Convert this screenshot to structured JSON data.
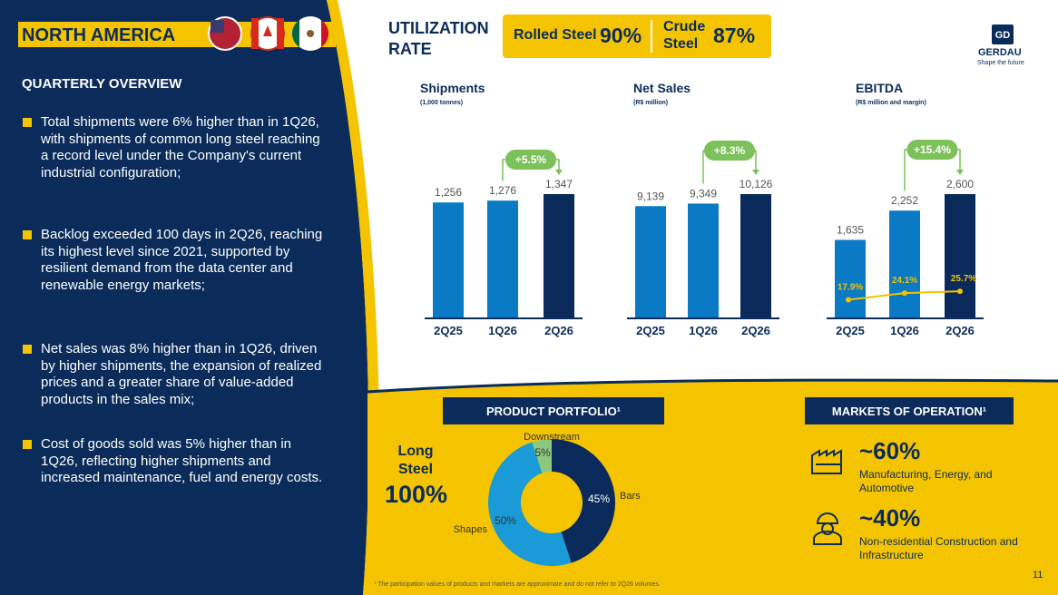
{
  "header": {
    "region": "NORTH AMERICA"
  },
  "overview": {
    "title": "QUARTERLY OVERVIEW",
    "bullets": [
      "Total shipments were 6% higher than in 1Q26, with shipments of common long steel reaching a record level under the Company's current industrial configuration;",
      "Backlog exceeded 100 days in 2Q26, reaching its highest level since 2021, supported by resilient demand from the data center and renewable energy markets;",
      "Net sales was 8% higher than in 1Q26, driven by higher shipments, the expansion of realized prices and a greater share of value-added products in the sales mix;",
      "Cost of goods sold was 5% higher than in 1Q26, reflecting higher shipments and increased maintenance, fuel and energy costs."
    ]
  },
  "utilization": {
    "title": "UTILIZATION RATE",
    "items": [
      {
        "label": "Rolled Steel",
        "value": "90%"
      },
      {
        "label": "Crude Steel",
        "value": "87%"
      }
    ]
  },
  "logo": {
    "name": "GERDAU",
    "tagline": "Shape the future"
  },
  "chart_data": [
    {
      "type": "bar",
      "title": "Shipments",
      "subtitle": "(1,000 tonnes)",
      "categories": [
        "2Q25",
        "1Q26",
        "2Q26"
      ],
      "values": [
        1256,
        1276,
        1347
      ],
      "value_labels": [
        "1,256",
        "1,276",
        "1,347"
      ],
      "colors": [
        "#0b7ac4",
        "#0b7ac4",
        "#0a2a5c"
      ],
      "annotation": "+5.5%"
    },
    {
      "type": "bar",
      "title": "Net Sales",
      "subtitle": "(R$ million)",
      "categories": [
        "2Q25",
        "1Q26",
        "2Q26"
      ],
      "values": [
        9139,
        9349,
        10126
      ],
      "value_labels": [
        "9,139",
        "9,349",
        "10,126"
      ],
      "colors": [
        "#0b7ac4",
        "#0b7ac4",
        "#0a2a5c"
      ],
      "annotation": "+8.3%"
    },
    {
      "type": "bar",
      "title": "EBITDA",
      "subtitle": "(R$ million and margin)",
      "categories": [
        "2Q25",
        "1Q26",
        "2Q26"
      ],
      "values": [
        1635,
        2252,
        2600
      ],
      "value_labels": [
        "1,635",
        "2,252",
        "2,600"
      ],
      "colors": [
        "#0b7ac4",
        "#0b7ac4",
        "#0a2a5c"
      ],
      "annotation": "+15.4%",
      "line": {
        "values": [
          17.9,
          24.1,
          25.7
        ],
        "value_labels": [
          "17.9%",
          "24.1%",
          "25.7%"
        ],
        "color": "#f2c200"
      }
    },
    {
      "type": "pie",
      "title": "PRODUCT PORTFOLIO¹",
      "categories": [
        "Bars",
        "Shapes",
        "Downstream"
      ],
      "values": [
        45,
        50,
        5
      ],
      "value_labels": [
        "45%",
        "50%",
        "5%"
      ],
      "colors": [
        "#0a2a5c",
        "#1a9ad6",
        "#8cc97e"
      ],
      "side_label": "Long Steel",
      "side_value": "100%"
    }
  ],
  "markets": {
    "title": "MARKETS OF OPERATION¹",
    "items": [
      {
        "share": "~60%",
        "label": "Manufacturing, Energy, and Automotive"
      },
      {
        "share": "~40%",
        "label": "Non-residential Construction and Infrastructure"
      }
    ]
  },
  "footnote": "¹ The participation values of products and markets are approximate and do not refer to 2Q26 volumes.",
  "page": "11"
}
